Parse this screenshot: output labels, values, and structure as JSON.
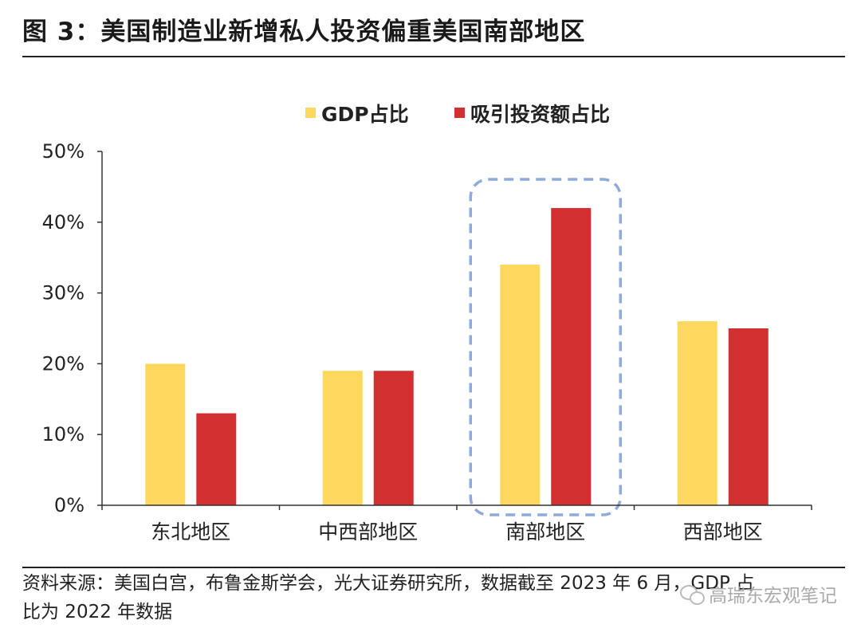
{
  "title": "图 3：美国制造业新增私人投资偏重美国南部地区",
  "source_line1": "资料来源：美国白宫，布鲁金斯学会，光大证券研究所，数据截至 2023 年 6 月，GDP 占",
  "source_line2": "比为 2022 年数据",
  "watermark": "高瑞东宏观笔记",
  "watermark_icon": "wechat-icon",
  "chart_data": {
    "type": "bar",
    "categories": [
      "东北地区",
      "中西部地区",
      "南部地区",
      "西部地区"
    ],
    "series": [
      {
        "name": "GDP占比",
        "values": [
          20,
          19,
          34,
          26
        ],
        "color": "#FDD85D"
      },
      {
        "name": "吸引投资额占比",
        "values": [
          13,
          19,
          42,
          25
        ],
        "color": "#D23030"
      }
    ],
    "ylim": [
      0,
      50
    ],
    "yticks": [
      "0%",
      "10%",
      "20%",
      "30%",
      "40%",
      "50%"
    ],
    "ytick_values": [
      0,
      10,
      20,
      30,
      40,
      50
    ],
    "legend_position": "top-center",
    "highlight_category": "南部地区",
    "highlight_color": "#8EAADB"
  }
}
